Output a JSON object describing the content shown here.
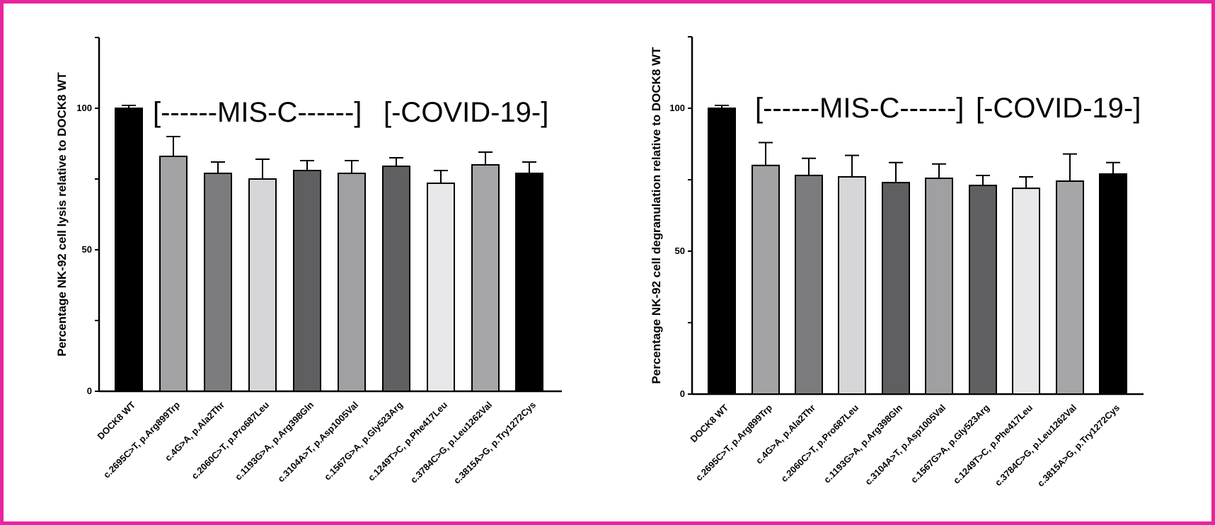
{
  "colors": {
    "frame": "#e8259f",
    "bars": [
      "#000000",
      "#a3a3a6",
      "#7c7c7e",
      "#d6d6d8",
      "#5f5f61",
      "#a0a0a3",
      "#606062",
      "#e8e8ea",
      "#a6a6a9",
      "#000000"
    ]
  },
  "chart_data": [
    {
      "type": "bar",
      "ylabel": "Percentage NK-92 cell lysis relative to DOCK8 WT",
      "ylim": [
        0,
        125
      ],
      "yticks": [
        0,
        50,
        100
      ],
      "groups": [
        "[------MIS-C------]",
        "[-COVID-19-]"
      ],
      "categories": [
        "DOCK8 WT",
        "c.2695C>T, p.Arg899Trp",
        "c.4G>A, p.Ala2Thr",
        "c.2060C>T, p.Pro687Leu",
        "c.1193G>A, p.Arg398Gln",
        "c.3104A>T, p.Asp1005Val",
        "c.1567G>A, p.Gly523Arg",
        "c.1249T>C, p.Phe417Leu",
        "c.3784C>G, p.Leu1262Val",
        "c.3815A>G, p.Try1272Cys"
      ],
      "values": [
        100,
        83,
        77,
        75,
        78,
        77,
        79.5,
        73.5,
        80,
        77
      ],
      "errors": [
        1,
        7,
        4,
        7,
        3.5,
        4.5,
        3,
        4.5,
        4.5,
        4
      ]
    },
    {
      "type": "bar",
      "ylabel": "Percentage NK-92 cell degranulation relative to DOCK8 WT",
      "ylim": [
        0,
        125
      ],
      "yticks": [
        0,
        50,
        100
      ],
      "groups": [
        "[------MIS-C------]",
        "[-COVID-19-]"
      ],
      "categories": [
        "DOCK8 WT",
        "c.2695C>T, p.Arg899Trp",
        "c.4G>A, p.Ala2Thr",
        "c.2060C>T, p.Pro687Leu",
        "c.1193G>A, p.Arg398Gln",
        "c.3104A>T, p.Asp1005Val",
        "c.1567G>A, p.Gly523Arg",
        "c.1249T>C, p.Phe417Leu",
        "c.3784C>G, p.Leu1262Val",
        "c.3815A>G, p.Try1272Cys"
      ],
      "values": [
        100,
        80,
        76.5,
        76,
        74,
        75.5,
        73,
        72,
        74.5,
        77
      ],
      "errors": [
        1,
        8,
        6,
        7.5,
        7,
        5,
        3.5,
        4,
        9.5,
        4
      ]
    }
  ]
}
